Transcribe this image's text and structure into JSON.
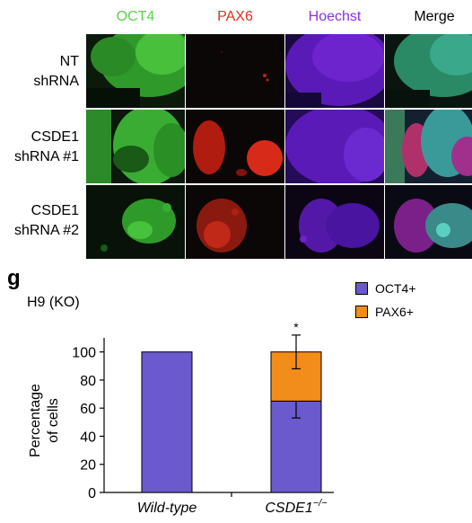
{
  "microscopy": {
    "columns": [
      {
        "label": "OCT4",
        "color": "#5ad44a"
      },
      {
        "label": "PAX6",
        "color": "#e03020"
      },
      {
        "label": "Hoechst",
        "color": "#8a32d8"
      },
      {
        "label": "Merge",
        "color": "#000000"
      }
    ],
    "rows": [
      {
        "line1": "NT",
        "line2": "shRNA"
      },
      {
        "line1": "CSDE1",
        "line2": "shRNA #1"
      },
      {
        "line1": "CSDE1",
        "line2": "shRNA #2"
      }
    ]
  },
  "panel_g": {
    "letter": "g",
    "subtitle": "H9 (KO)"
  },
  "chart_data": {
    "type": "bar",
    "stacked": true,
    "categories": [
      "Wild-type",
      "CSDE1"
    ],
    "category_superscript": [
      "",
      "−/−"
    ],
    "series": [
      {
        "name": "OCT4+",
        "color": "#6a5acd",
        "values": [
          100,
          65
        ],
        "errors": [
          null,
          12
        ]
      },
      {
        "name": "PAX6+",
        "color": "#f28c1a",
        "values": [
          0,
          35
        ],
        "errors": [
          null,
          12
        ]
      }
    ],
    "significance": [
      {
        "category": "CSDE1",
        "series": "OCT4+",
        "mark": "*"
      },
      {
        "category": "CSDE1",
        "series": "PAX6+",
        "mark": "*"
      }
    ],
    "ylabel": "Percentage of cells",
    "ylabel_lines": [
      "Percentage",
      "of cells"
    ],
    "yticks": [
      0,
      20,
      40,
      60,
      80,
      100
    ],
    "ylim": [
      0,
      110
    ],
    "grid": false,
    "legend_position": "top-right"
  }
}
